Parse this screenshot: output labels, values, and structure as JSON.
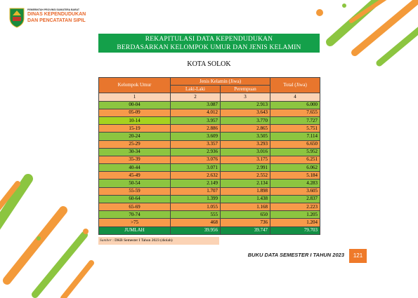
{
  "header": {
    "agency_top": "PEMERINTAH PROVINSI SUMATERA BARAT",
    "agency_name_1": "DINAS KEPENDUDUKAN",
    "agency_name_2": "DAN PENCATATAN SIPIL"
  },
  "title": {
    "line1": "REKAPITULASI DATA KEPENDUDUKAN",
    "line2": "BERDASARKAN KELOMPOK UMUR DAN JENIS KELAMIN"
  },
  "subtitle": "KOTA SOLOK",
  "table": {
    "headers": {
      "age_group": "Kelompok Umur",
      "gender": "Jenis Kelamin (Jiwa)",
      "total": "Total (Jiwa)",
      "male": "Laki-Laki",
      "female": "Perempuan"
    },
    "column_numbers": [
      "1",
      "2",
      "3",
      "4"
    ],
    "rows": [
      [
        "00-04",
        "3.087",
        "2.913",
        "6.000"
      ],
      [
        "05-09",
        "4.012",
        "3.643",
        "7.655"
      ],
      [
        "10-14",
        "3.957",
        "3.770",
        "7.727"
      ],
      [
        "15-19",
        "2.886",
        "2.865",
        "5.751"
      ],
      [
        "20-24",
        "3.609",
        "3.505",
        "7.114"
      ],
      [
        "25-29",
        "3.357",
        "3.293",
        "6.650"
      ],
      [
        "30-34",
        "2.936",
        "3.016",
        "5.952"
      ],
      [
        "35-39",
        "3.076",
        "3.175",
        "6.251"
      ],
      [
        "40-44",
        "3.071",
        "2.991",
        "6.062"
      ],
      [
        "45-49",
        "2.632",
        "2.552",
        "5.184"
      ],
      [
        "50-54",
        "2.149",
        "2.134",
        "4.283"
      ],
      [
        "55-59",
        "1.707",
        "1.898",
        "3.605"
      ],
      [
        "60-64",
        "1.399",
        "1.438",
        "2.837"
      ],
      [
        "65-69",
        "1.055",
        "1.168",
        "2.223"
      ],
      [
        "70-74",
        "555",
        "650",
        "1.205"
      ],
      [
        ">75",
        "468",
        "736",
        "1.204"
      ]
    ],
    "total_row": [
      "JUMLAH",
      "39.956",
      "39.747",
      "79.703"
    ]
  },
  "source": {
    "label": "Sumber",
    "text": ": DKB Semester I Tahun 2023 (diolah)"
  },
  "footer": {
    "book": "BUKU DATA SEMESTER I TAHUN 2023",
    "page": "121"
  }
}
